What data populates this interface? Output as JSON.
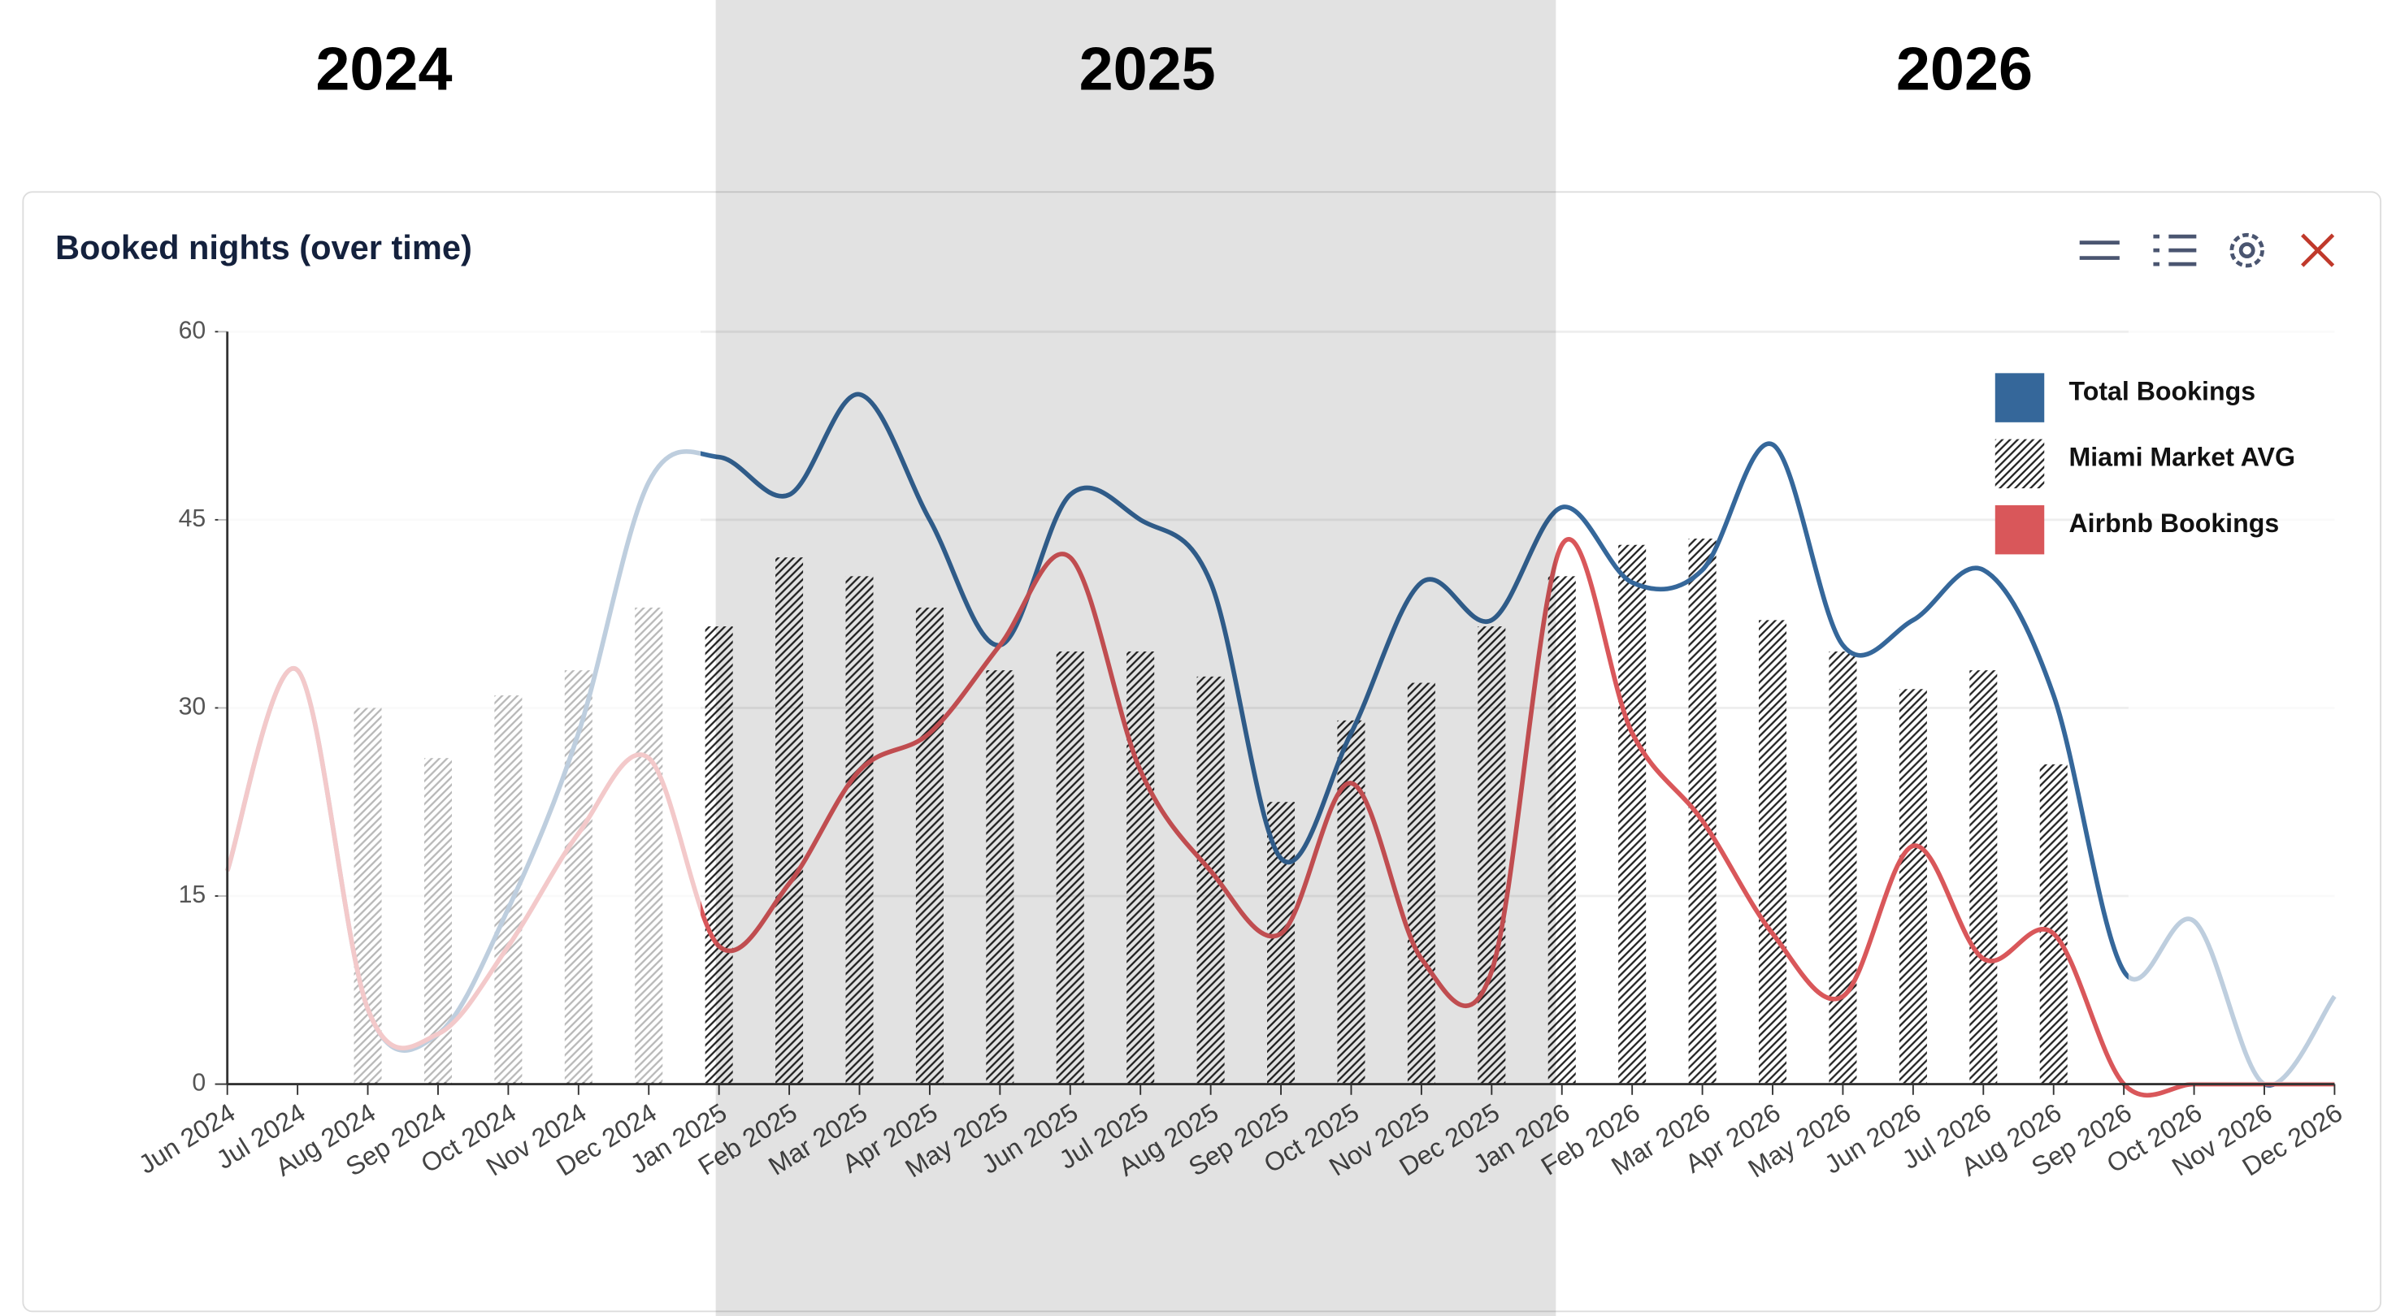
{
  "header": {
    "years": [
      "2024",
      "2025",
      "2026"
    ]
  },
  "chart_data": {
    "type": "line",
    "title": "Booked nights (over time)",
    "categories": [
      "Jun 2024",
      "Jul 2024",
      "Aug 2024",
      "Sep 2024",
      "Oct 2024",
      "Nov 2024",
      "Dec 2024",
      "Jan 2025",
      "Feb 2025",
      "Mar 2025",
      "Apr 2025",
      "May 2025",
      "Jun 2025",
      "Jul 2025",
      "Aug 2025",
      "Sep 2025",
      "Oct 2025",
      "Nov 2025",
      "Dec 2025",
      "Jan 2026",
      "Feb 2026",
      "Mar 2026",
      "Apr 2026",
      "May 2026",
      "Jun 2026",
      "Jul 2026",
      "Aug 2026",
      "Sep 2026",
      "Oct 2026",
      "Nov 2026",
      "Dec 2026"
    ],
    "series": [
      {
        "name": "Total Bookings",
        "type": "line",
        "color": "#35679a",
        "values": [
          17,
          33,
          6,
          4,
          14,
          28,
          48,
          50,
          47,
          55,
          45,
          35,
          47,
          45,
          40,
          18,
          28,
          40,
          37,
          46,
          40,
          41,
          51,
          35,
          37,
          41,
          31,
          9,
          13,
          0,
          7
        ]
      },
      {
        "name": "Miami Market AVG",
        "type": "bar",
        "color": "#222222",
        "values": [
          null,
          null,
          30,
          26,
          31,
          33,
          38,
          36.5,
          42,
          40.5,
          38,
          33,
          34.5,
          34.5,
          32.5,
          22.5,
          29,
          32,
          36.5,
          40.5,
          43,
          43.5,
          37,
          34.5,
          31.5,
          33,
          25.5,
          null,
          null,
          null,
          null
        ]
      },
      {
        "name": "Airbnb Bookings",
        "type": "line",
        "color": "#d9575a",
        "values": [
          17,
          33,
          6,
          4,
          11,
          20,
          26,
          11,
          16,
          25,
          28,
          35,
          42,
          25,
          17,
          12,
          24,
          10,
          9,
          43,
          28,
          21,
          12,
          7,
          19,
          10,
          12,
          0,
          0,
          0,
          0
        ]
      }
    ],
    "ylim": [
      0,
      60
    ],
    "yticks": [
      0,
      15,
      30,
      45,
      60
    ],
    "grid": true,
    "legend": "top-right"
  }
}
